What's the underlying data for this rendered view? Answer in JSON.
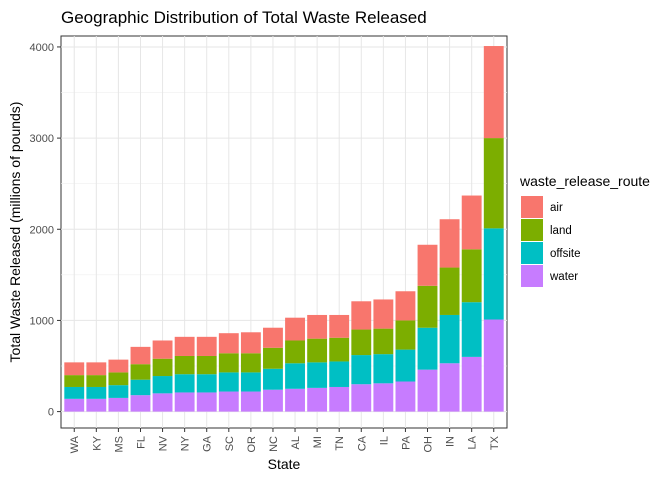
{
  "chart_data": {
    "type": "bar",
    "stacked": true,
    "title": "Geographic Distribution of Total Waste Released",
    "xlabel": "State",
    "ylabel": "Total Waste Released (millions of pounds)",
    "ylim": [
      -180,
      4120
    ],
    "yticks": [
      0,
      1000,
      2000,
      3000,
      4000
    ],
    "grid": true,
    "legend_position": "right",
    "legend_title": "waste_release_route",
    "categories": [
      "WA",
      "KY",
      "MS",
      "FL",
      "NV",
      "NY",
      "GA",
      "SC",
      "OR",
      "NC",
      "AL",
      "MI",
      "TN",
      "CA",
      "IL",
      "PA",
      "OH",
      "IN",
      "LA",
      "TX"
    ],
    "series": [
      {
        "name": "water",
        "color": "#C77CFF",
        "values": [
          140,
          140,
          150,
          180,
          200,
          210,
          210,
          220,
          220,
          240,
          250,
          260,
          270,
          300,
          310,
          330,
          460,
          530,
          600,
          1010
        ]
      },
      {
        "name": "offsite",
        "color": "#00BFC4",
        "values": [
          130,
          130,
          140,
          170,
          190,
          200,
          200,
          210,
          210,
          230,
          280,
          280,
          280,
          320,
          320,
          350,
          460,
          530,
          600,
          1000
        ]
      },
      {
        "name": "land",
        "color": "#7CAE00",
        "values": [
          130,
          130,
          140,
          170,
          190,
          200,
          200,
          210,
          210,
          230,
          250,
          260,
          260,
          280,
          280,
          320,
          460,
          520,
          580,
          990
        ]
      },
      {
        "name": "air",
        "color": "#F8766D",
        "values": [
          140,
          140,
          140,
          190,
          200,
          210,
          210,
          220,
          230,
          220,
          250,
          260,
          250,
          310,
          320,
          320,
          450,
          530,
          590,
          1010
        ]
      }
    ],
    "legend_order": [
      "air",
      "land",
      "offsite",
      "water"
    ]
  }
}
